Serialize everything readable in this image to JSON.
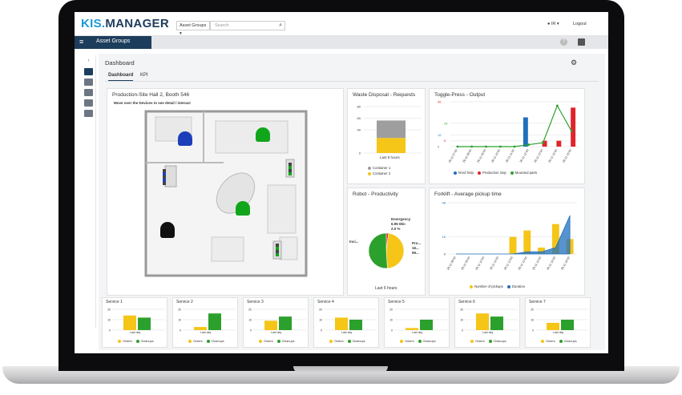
{
  "app": {
    "logo_prefix": "KIS.",
    "logo_name": "MANAGER",
    "asset_select": "Asset Groups ▾",
    "search_placeholder": "Search",
    "user": "IR ▾",
    "logout": "Logout"
  },
  "nav": {
    "title": "Asset Groups",
    "help": "?"
  },
  "dashboard": {
    "title": "Dashboard",
    "tabs": [
      "Dashboard",
      "KPI"
    ]
  },
  "floor": {
    "title": "Production-Site Hall 2, Booth 546",
    "hint": "Move over the Devices to see detail / interact"
  },
  "waste": {
    "title": "Waste Disposal - Requests",
    "xlabel": "Last 8 hours",
    "legend": [
      "Container 1",
      "Container 2"
    ]
  },
  "toggle": {
    "title": "Toggle-Press - Output",
    "legend": [
      "hired help",
      "Production stop",
      "Mounted parts"
    ]
  },
  "robot": {
    "title": "Robot - Productivity",
    "xlabel": "Last 6 hours",
    "label_emergency": "Emergency",
    "label_pct": "6.95 Min",
    "label_pct2": "2.0 %",
    "label_left": "Inci...",
    "label_right": "Pro...",
    "label_right2": "16...",
    "label_right3": "99..."
  },
  "forklift": {
    "title": "Forklift - Average pickup time",
    "legend": [
      "Number of pickups",
      "Duration"
    ]
  },
  "services": {
    "titles": [
      "Service 1",
      "Service 2",
      "Service 3",
      "Service 4",
      "Service 5",
      "Service 6",
      "Service 7"
    ],
    "xlabel": "Last day",
    "legend": [
      "Orders",
      "Cleanups"
    ]
  },
  "colors": {
    "navy": "#1d3d5c",
    "blue": "#1a9ad6",
    "green": "#2ca02c",
    "yellow": "#f5c518",
    "red": "#e0242b",
    "grey": "#9e9e9e",
    "chart_blue": "#1f6fbd"
  },
  "chart_data": [
    {
      "type": "bar",
      "title": "Waste Disposal - Requests",
      "xlabel": "Last 8 hours",
      "ylim": [
        0,
        80
      ],
      "yticks": [
        0,
        40,
        60,
        80
      ],
      "categories": [
        "Last 8 hours"
      ],
      "series": [
        {
          "name": "Container 1",
          "values": [
            30
          ]
        },
        {
          "name": "Container 2",
          "values": [
            26
          ]
        }
      ],
      "stacked": true
    },
    {
      "type": "bar",
      "title": "Toggle-Press - Output",
      "ylim": [
        0,
        46
      ],
      "yticks": [
        0,
        6,
        12,
        24,
        46
      ],
      "categories": [
        "26.11 07:00",
        "26.11 08:00",
        "26.11 09:00",
        "26.11 10:00",
        "26.11 11:00",
        "26.11 12:00",
        "26.11 13:00",
        "26.11 14:00",
        "26.11 15:00"
      ],
      "series": [
        {
          "name": "hired help",
          "values": [
            0,
            0,
            0,
            0,
            0,
            30,
            0,
            0,
            0
          ]
        },
        {
          "name": "Production stop",
          "values": [
            0,
            0,
            0,
            0,
            0,
            0,
            6,
            6,
            40
          ]
        },
        {
          "name": "Mounted parts",
          "values": [
            0,
            0,
            0,
            0,
            0,
            2,
            4,
            42,
            16
          ]
        }
      ]
    },
    {
      "type": "pie",
      "title": "Robot - Productivity",
      "xlabel": "Last 6 hours",
      "labels": [
        "Emergency",
        "Inci...",
        "Pro..."
      ],
      "values": [
        2,
        47,
        51
      ]
    },
    {
      "type": "bar",
      "title": "Forklift - Average pickup time",
      "ylim": [
        0,
        48
      ],
      "yticks": [
        0,
        16,
        48
      ],
      "categories": [
        "26.11 08:00",
        "26.11 09:00",
        "26.11 10:00",
        "26.11 11:00",
        "26.11 12:00",
        "26.11 13:00",
        "26.11 14:00",
        "26.11 15:00",
        "26.11 16:00"
      ],
      "series": [
        {
          "name": "Number of pickups",
          "values": [
            0,
            0,
            0,
            0,
            16,
            22,
            6,
            28,
            14
          ]
        },
        {
          "name": "Duration",
          "values": [
            0,
            0,
            0,
            0,
            0,
            2,
            2,
            6,
            36
          ]
        }
      ]
    }
  ]
}
